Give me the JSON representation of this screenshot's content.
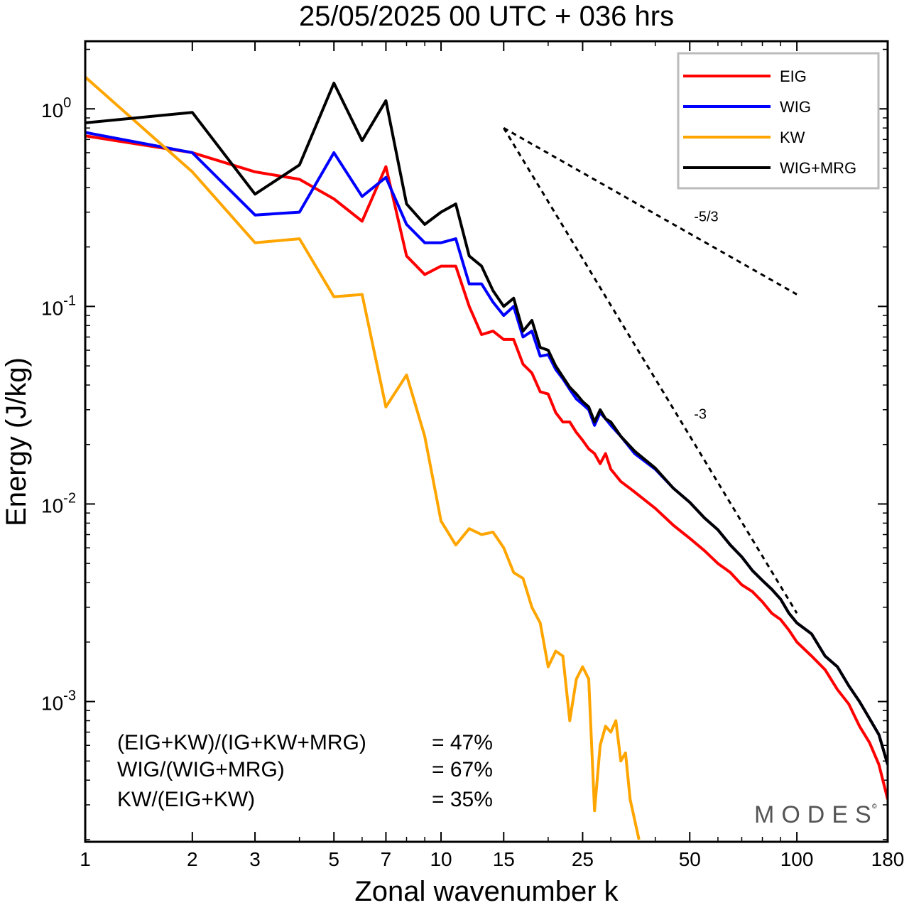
{
  "title": "25/05/2025  00 UTC  + 036 hrs",
  "chart_data": {
    "type": "line",
    "title": "25/05/2025  00 UTC  + 036 hrs",
    "xlabel": "Zonal wavenumber k",
    "ylabel": "Energy (J/kg)",
    "xscale": "log",
    "yscale": "log",
    "xlim": [
      1,
      180
    ],
    "ylim": [
      0.000195,
      2.2
    ],
    "x_ticks": [
      1,
      2,
      3,
      5,
      7,
      10,
      15,
      25,
      50,
      100,
      180
    ],
    "x_tick_labels": [
      "1",
      "2",
      "3",
      "5",
      "7",
      "10",
      "15",
      "25",
      "50",
      "100",
      "180"
    ],
    "y_ticks": [
      {
        "value": 1,
        "base": "10",
        "exp": "0"
      },
      {
        "value": 0.1,
        "base": "10",
        "exp": "-1"
      },
      {
        "value": 0.01,
        "base": "10",
        "exp": "-2"
      },
      {
        "value": 0.001,
        "base": "10",
        "exp": "-3"
      }
    ],
    "grid": false,
    "legend_position": "top-right",
    "series": [
      {
        "name": "EIG",
        "color": "#ff0000",
        "points": [
          [
            1,
            0.73
          ],
          [
            2,
            0.6
          ],
          [
            3,
            0.48
          ],
          [
            4,
            0.44
          ],
          [
            5,
            0.35
          ],
          [
            6,
            0.27
          ],
          [
            7,
            0.51
          ],
          [
            8,
            0.18
          ],
          [
            9,
            0.145
          ],
          [
            10,
            0.16
          ],
          [
            11,
            0.16
          ],
          [
            12,
            0.1
          ],
          [
            13,
            0.072
          ],
          [
            14,
            0.075
          ],
          [
            15,
            0.068
          ],
          [
            16,
            0.068
          ],
          [
            17,
            0.051
          ],
          [
            18,
            0.046
          ],
          [
            19,
            0.037
          ],
          [
            20,
            0.036
          ],
          [
            21,
            0.029
          ],
          [
            22,
            0.026
          ],
          [
            23,
            0.026
          ],
          [
            24,
            0.023
          ],
          [
            25,
            0.021
          ],
          [
            26,
            0.019
          ],
          [
            27,
            0.018
          ],
          [
            28,
            0.016
          ],
          [
            29,
            0.018
          ],
          [
            30,
            0.015
          ],
          [
            32,
            0.013
          ],
          [
            35,
            0.0115
          ],
          [
            40,
            0.0095
          ],
          [
            45,
            0.0078
          ],
          [
            50,
            0.0067
          ],
          [
            55,
            0.0058
          ],
          [
            60,
            0.005
          ],
          [
            65,
            0.0045
          ],
          [
            70,
            0.0039
          ],
          [
            75,
            0.0036
          ],
          [
            80,
            0.0032
          ],
          [
            85,
            0.0028
          ],
          [
            90,
            0.0026
          ],
          [
            95,
            0.0023
          ],
          [
            100,
            0.002
          ],
          [
            110,
            0.0017
          ],
          [
            120,
            0.00145
          ],
          [
            130,
            0.00115
          ],
          [
            140,
            0.00097
          ],
          [
            150,
            0.00075
          ],
          [
            160,
            0.00062
          ],
          [
            170,
            0.00048
          ],
          [
            180,
            0.00032
          ]
        ]
      },
      {
        "name": "WIG",
        "color": "#0000ff",
        "points": [
          [
            1,
            0.76
          ],
          [
            2,
            0.6
          ],
          [
            3,
            0.29
          ],
          [
            4,
            0.3
          ],
          [
            5,
            0.6
          ],
          [
            6,
            0.36
          ],
          [
            7,
            0.45
          ],
          [
            8,
            0.26
          ],
          [
            9,
            0.21
          ],
          [
            10,
            0.21
          ],
          [
            11,
            0.22
          ],
          [
            12,
            0.13
          ],
          [
            13,
            0.13
          ],
          [
            14,
            0.105
          ],
          [
            15,
            0.09
          ],
          [
            16,
            0.1
          ],
          [
            17,
            0.07
          ],
          [
            18,
            0.075
          ],
          [
            19,
            0.056
          ],
          [
            20,
            0.057
          ],
          [
            21,
            0.048
          ],
          [
            22,
            0.043
          ],
          [
            23,
            0.038
          ],
          [
            24,
            0.034
          ],
          [
            25,
            0.032
          ],
          [
            26,
            0.03
          ],
          [
            27,
            0.025
          ],
          [
            28,
            0.029
          ],
          [
            29,
            0.027
          ],
          [
            30,
            0.025
          ],
          [
            32,
            0.022
          ],
          [
            35,
            0.018
          ],
          [
            40,
            0.015
          ],
          [
            45,
            0.012
          ],
          [
            50,
            0.0102
          ],
          [
            55,
            0.0085
          ],
          [
            60,
            0.0074
          ],
          [
            65,
            0.0062
          ],
          [
            70,
            0.0054
          ],
          [
            75,
            0.0046
          ],
          [
            80,
            0.0041
          ],
          [
            85,
            0.0037
          ],
          [
            90,
            0.0033
          ],
          [
            95,
            0.0028
          ],
          [
            100,
            0.0025
          ],
          [
            110,
            0.0022
          ],
          [
            120,
            0.0017
          ],
          [
            130,
            0.0015
          ],
          [
            140,
            0.0012
          ],
          [
            150,
            0.001
          ],
          [
            160,
            0.00082
          ],
          [
            170,
            0.00068
          ],
          [
            180,
            0.00048
          ]
        ]
      },
      {
        "name": "KW",
        "color": "#ffa500",
        "points": [
          [
            1,
            1.45
          ],
          [
            2,
            0.48
          ],
          [
            3,
            0.21
          ],
          [
            4,
            0.22
          ],
          [
            5,
            0.112
          ],
          [
            6,
            0.115
          ],
          [
            7,
            0.031
          ],
          [
            8,
            0.045
          ],
          [
            9,
            0.022
          ],
          [
            10,
            0.0082
          ],
          [
            11,
            0.0062
          ],
          [
            12,
            0.0075
          ],
          [
            13,
            0.007
          ],
          [
            14,
            0.0072
          ],
          [
            15,
            0.006
          ],
          [
            16,
            0.0045
          ],
          [
            17,
            0.0042
          ],
          [
            18,
            0.003
          ],
          [
            19,
            0.0025
          ],
          [
            20,
            0.0015
          ],
          [
            21,
            0.0018
          ],
          [
            22,
            0.0017
          ],
          [
            23,
            0.0008
          ],
          [
            24,
            0.0013
          ],
          [
            25,
            0.0015
          ],
          [
            26,
            0.0013
          ],
          [
            27,
            0.00028
          ],
          [
            28,
            0.0006
          ],
          [
            29,
            0.00075
          ],
          [
            30,
            0.0007
          ],
          [
            31,
            0.0008
          ],
          [
            32,
            0.0005
          ],
          [
            33,
            0.00055
          ],
          [
            34,
            0.00032
          ],
          [
            36,
            0.0002
          ]
        ]
      },
      {
        "name": "WIG+MRG",
        "color": "#000000",
        "points": [
          [
            1,
            0.85
          ],
          [
            2,
            0.96
          ],
          [
            3,
            0.37
          ],
          [
            4,
            0.52
          ],
          [
            5,
            1.35
          ],
          [
            6,
            0.69
          ],
          [
            7,
            1.1
          ],
          [
            8,
            0.33
          ],
          [
            9,
            0.26
          ],
          [
            10,
            0.3
          ],
          [
            11,
            0.33
          ],
          [
            12,
            0.18
          ],
          [
            13,
            0.16
          ],
          [
            14,
            0.12
          ],
          [
            15,
            0.1
          ],
          [
            16,
            0.11
          ],
          [
            17,
            0.075
          ],
          [
            18,
            0.085
          ],
          [
            19,
            0.062
          ],
          [
            20,
            0.06
          ],
          [
            21,
            0.05
          ],
          [
            22,
            0.044
          ],
          [
            23,
            0.039
          ],
          [
            24,
            0.036
          ],
          [
            25,
            0.033
          ],
          [
            26,
            0.031
          ],
          [
            27,
            0.026
          ],
          [
            28,
            0.03
          ],
          [
            29,
            0.027
          ],
          [
            30,
            0.026
          ],
          [
            32,
            0.022
          ],
          [
            35,
            0.0185
          ],
          [
            40,
            0.0152
          ],
          [
            45,
            0.012
          ],
          [
            50,
            0.0102
          ],
          [
            55,
            0.0085
          ],
          [
            60,
            0.0074
          ],
          [
            65,
            0.0062
          ],
          [
            70,
            0.0054
          ],
          [
            75,
            0.0046
          ],
          [
            80,
            0.0041
          ],
          [
            85,
            0.0037
          ],
          [
            90,
            0.0033
          ],
          [
            95,
            0.0028
          ],
          [
            100,
            0.0025
          ],
          [
            110,
            0.0022
          ],
          [
            120,
            0.0017
          ],
          [
            130,
            0.0015
          ],
          [
            140,
            0.0012
          ],
          [
            150,
            0.001
          ],
          [
            160,
            0.00082
          ],
          [
            170,
            0.00068
          ],
          [
            180,
            0.00048
          ]
        ]
      }
    ],
    "reference_lines": [
      {
        "label": "-5/3",
        "x": [
          15,
          100
        ],
        "y": [
          0.8,
          0.115
        ]
      },
      {
        "label": "-3",
        "x": [
          15,
          100
        ],
        "y": [
          0.8,
          0.0028
        ]
      }
    ],
    "ratios": [
      {
        "label": "(EIG+KW)/(IG+KW+MRG)",
        "value": "= 47%"
      },
      {
        "label": "WIG/(WIG+MRG)",
        "value": "= 67%"
      },
      {
        "label": "KW/(EIG+KW)",
        "value": "= 35%"
      }
    ],
    "watermark": "MODES"
  }
}
